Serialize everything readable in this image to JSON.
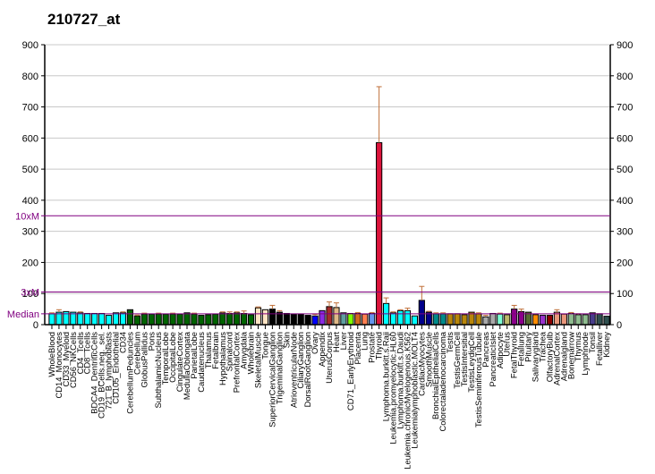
{
  "title": "210727_at",
  "chart_data": {
    "type": "bar",
    "title": "210727_at",
    "xlabel": "",
    "ylabel": "",
    "ylim": [
      0,
      900
    ],
    "y_ticks_left": [
      0,
      100,
      200,
      300,
      400,
      500,
      600,
      700,
      800,
      900
    ],
    "y_ticks_right": [
      0,
      100,
      200,
      300,
      400,
      500,
      600,
      700,
      800,
      900
    ],
    "grid": true,
    "reference_lines": [
      {
        "label": "Median",
        "value": 35,
        "color": "#800080"
      },
      {
        "label": "3xM",
        "value": 105,
        "color": "#800080"
      },
      {
        "label": "10xM",
        "value": 350,
        "color": "#800080"
      }
    ],
    "categories": [
      "WholeBlood",
      "CD14_Monocytes",
      "CD33_Myeloid",
      "CD56_NKCells",
      "CD4_Tcells",
      "CD8_Tcells",
      "BDCA4_DentriticCells",
      "CD19_BCells.neg._sel.",
      "721_B_lymphoblasts",
      "CD105_Endothelial",
      "CD34",
      "CerebellumPeduncles",
      "Cerebellum",
      "GlobusPallidus",
      "Pons",
      "SubthalamicNucleus",
      "TemporalLobe",
      "OccipitalLobe",
      "CingulateCortex",
      "MedullaOblongata",
      "ParietalLobe",
      "Caudatenucleus",
      "Thalamus",
      "Fetalbrain",
      "Hypothalamus",
      "Spinalcord",
      "PrefrontalCortex",
      "Amygdala",
      "Wholebrain",
      "SkeletalMuscle",
      "Tongue",
      "SuperiorCervicalGanglion",
      "TrigeminalGanglion",
      "Skin",
      "AtrioventricularNode",
      "CiliaryGanglion",
      "DorsalRootGanglion",
      "Ovary",
      "Appendix",
      "UterusCorpus",
      "Heart",
      "Liver",
      "CD71_EarlyErythroid",
      "Placenta",
      "Lung",
      "Prostate",
      "Thyroid",
      "Lymphoma.burkitt.s.Raji",
      "Leukemia.promyelocytic.HL60",
      "Lymphoma.burkitt.s.Daudi",
      "Leukemia.chronicMyelogenous.K562",
      "Leukemialymphoblastic.MOLT4",
      "CardiacMyocytes",
      "SmoothMuscle",
      "BronchialEpithelialCells",
      "Colorectaladenocarcinoma",
      "Testis",
      "TestisGermCell",
      "TestisIntersitial",
      "TestisLeydigCell",
      "TestisSeminiferousTubule",
      "Pancreas",
      "PancreaticIslet",
      "Adipocyte",
      "Uterus",
      "FetalThyroid",
      "Fetallung",
      "Pituitary",
      "Salivarygland",
      "Trachea",
      "OlfactoryBulb",
      "AdrenalCortex",
      "Adrenalgland",
      "Bonemarrow",
      "Thymus",
      "Lymphnode",
      "Tonsil",
      "Fetalliver",
      "Kidney"
    ],
    "values": [
      35,
      40,
      42,
      40,
      38,
      36,
      36,
      36,
      30,
      38,
      38,
      48,
      28,
      34,
      34,
      34,
      34,
      34,
      34,
      38,
      34,
      30,
      32,
      34,
      38,
      36,
      38,
      36,
      32,
      54,
      48,
      50,
      40,
      36,
      34,
      34,
      30,
      28,
      45,
      58,
      55,
      38,
      36,
      36,
      34,
      36,
      585,
      68,
      38,
      45,
      45,
      28,
      78,
      40,
      35,
      35,
      35,
      35,
      32,
      40,
      35,
      25,
      36,
      34,
      32,
      50,
      42,
      40,
      32,
      30,
      30,
      40,
      34,
      36,
      32,
      32,
      38,
      35,
      27
    ],
    "errors": [
      3,
      8,
      0,
      0,
      3,
      0,
      0,
      0,
      0,
      0,
      3,
      0,
      3,
      3,
      0,
      3,
      0,
      3,
      0,
      0,
      3,
      0,
      0,
      0,
      3,
      5,
      3,
      8,
      0,
      3,
      0,
      12,
      5,
      0,
      0,
      0,
      0,
      5,
      0,
      15,
      15,
      0,
      0,
      3,
      0,
      3,
      180,
      18,
      3,
      3,
      8,
      0,
      45,
      3,
      3,
      3,
      0,
      0,
      0,
      0,
      3,
      5,
      0,
      3,
      0,
      12,
      8,
      0,
      0,
      0,
      0,
      8,
      0,
      3,
      3,
      0,
      0,
      0,
      0
    ],
    "colors": [
      "#00FFFF",
      "#00FFFF",
      "#00FFFF",
      "#00FFFF",
      "#00FFFF",
      "#00FFFF",
      "#00FFFF",
      "#00FFFF",
      "#00FFFF",
      "#00FFFF",
      "#00FFFF",
      "#006400",
      "#006400",
      "#006400",
      "#006400",
      "#006400",
      "#006400",
      "#006400",
      "#006400",
      "#006400",
      "#006400",
      "#006400",
      "#006400",
      "#006400",
      "#006400",
      "#006400",
      "#006400",
      "#006400",
      "#006400",
      "#FFE4C4",
      "#FFE4C4",
      "#000000",
      "#000000",
      "#000000",
      "#000000",
      "#000000",
      "#000000",
      "#0000FF",
      "#8A2BE2",
      "#A52A2A",
      "#DEB887",
      "#5F9EA0",
      "#7FFF00",
      "#D2691E",
      "#FF7F50",
      "#6495ED",
      "#DC143C",
      "#00FFFF",
      "#00FFFF",
      "#00FFFF",
      "#00FFFF",
      "#00FFFF",
      "#00008B",
      "#00008B",
      "#008B8B",
      "#008B8B",
      "#B8860B",
      "#B8860B",
      "#B8860B",
      "#B8860B",
      "#B8860B",
      "#A9A9A9",
      "#A9A9A9",
      "#7FFFD4",
      "#BDB76B",
      "#8B008B",
      "#8B008B",
      "#556B2F",
      "#FF8C00",
      "#9932CC",
      "#8B0000",
      "#E9967A",
      "#E9967A",
      "#8FBC8F",
      "#8FBC8F",
      "#8FBC8F",
      "#483D8B",
      "#2F4F4F",
      "#2F4F4F"
    ]
  }
}
